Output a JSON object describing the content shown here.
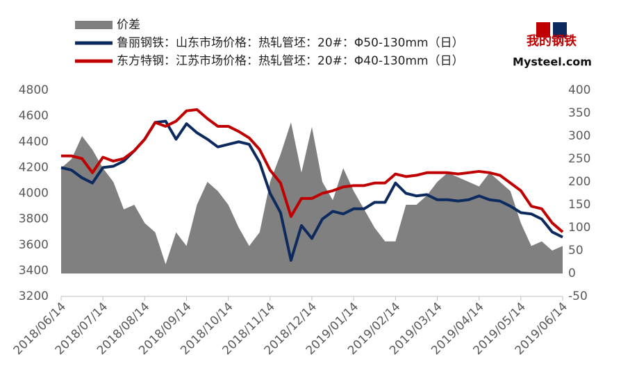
{
  "chart_data": {
    "type": "line",
    "logo": {
      "cn": "我的钢铁",
      "en": "Mysteel.com"
    },
    "categories": [
      "2018/06/14",
      null,
      null,
      null,
      "2018/07/14",
      null,
      null,
      null,
      "2018/08/14",
      null,
      null,
      null,
      "2018/09/14",
      null,
      null,
      null,
      "2018/10/14",
      null,
      null,
      null,
      "2018/11/14",
      null,
      null,
      null,
      "2018/12/14",
      null,
      null,
      null,
      "2019/01/14",
      null,
      null,
      null,
      "2019/02/14",
      null,
      null,
      null,
      "2019/03/14",
      null,
      null,
      null,
      "2019/04/14",
      null,
      null,
      null,
      "2019/05/14",
      null,
      null,
      null,
      "2019/06/14"
    ],
    "series": [
      {
        "name": "价差",
        "type": "area",
        "axis": "y2",
        "color": "#808080",
        "values": [
          230,
          250,
          300,
          270,
          230,
          200,
          140,
          150,
          110,
          90,
          20,
          90,
          60,
          150,
          200,
          180,
          150,
          100,
          60,
          90,
          200,
          260,
          330,
          220,
          320,
          200,
          160,
          230,
          180,
          140,
          100,
          70,
          70,
          150,
          150,
          170,
          200,
          220,
          210,
          200,
          190,
          220,
          200,
          180,
          110,
          60,
          70,
          50,
          60
        ]
      },
      {
        "name": "鲁丽钢铁：山东市场价格：热轧管坯：20#：Φ50-130mm（日）",
        "type": "line",
        "axis": "y",
        "color": "#0d2a5e",
        "values": [
          4200,
          4180,
          4120,
          4080,
          4200,
          4210,
          4250,
          4330,
          4420,
          4550,
          4560,
          4420,
          4540,
          4470,
          4420,
          4360,
          4380,
          4400,
          4380,
          4240,
          4000,
          3850,
          3480,
          3750,
          3650,
          3800,
          3860,
          3840,
          3880,
          3880,
          3930,
          3930,
          4080,
          4000,
          3980,
          3990,
          3950,
          3950,
          3940,
          3950,
          3980,
          3950,
          3940,
          3900,
          3850,
          3840,
          3800,
          3700,
          3660
        ]
      },
      {
        "name": "东方特钢：江苏市场价格：热轧管坯：20#：Φ40-130mm（日）",
        "type": "line",
        "axis": "y",
        "color": "#c00000",
        "values": [
          4290,
          4290,
          4270,
          4160,
          4280,
          4250,
          4270,
          4330,
          4420,
          4550,
          4520,
          4560,
          4640,
          4650,
          4580,
          4520,
          4520,
          4480,
          4430,
          4340,
          4180,
          4080,
          3820,
          3960,
          3960,
          4000,
          4020,
          4050,
          4060,
          4060,
          4080,
          4080,
          4150,
          4130,
          4140,
          4160,
          4160,
          4160,
          4150,
          4160,
          4170,
          4160,
          4140,
          4080,
          4020,
          3900,
          3880,
          3770,
          3700
        ]
      }
    ],
    "ylim": [
      3200,
      4800
    ],
    "yticks": [
      3200,
      3400,
      3600,
      3800,
      4000,
      4200,
      4400,
      4600,
      4800
    ],
    "y2lim": [
      -50,
      400
    ],
    "y2ticks": [
      -50,
      0,
      50,
      100,
      150,
      200,
      250,
      300,
      350,
      400
    ],
    "legend": "top-left",
    "grid": false
  }
}
